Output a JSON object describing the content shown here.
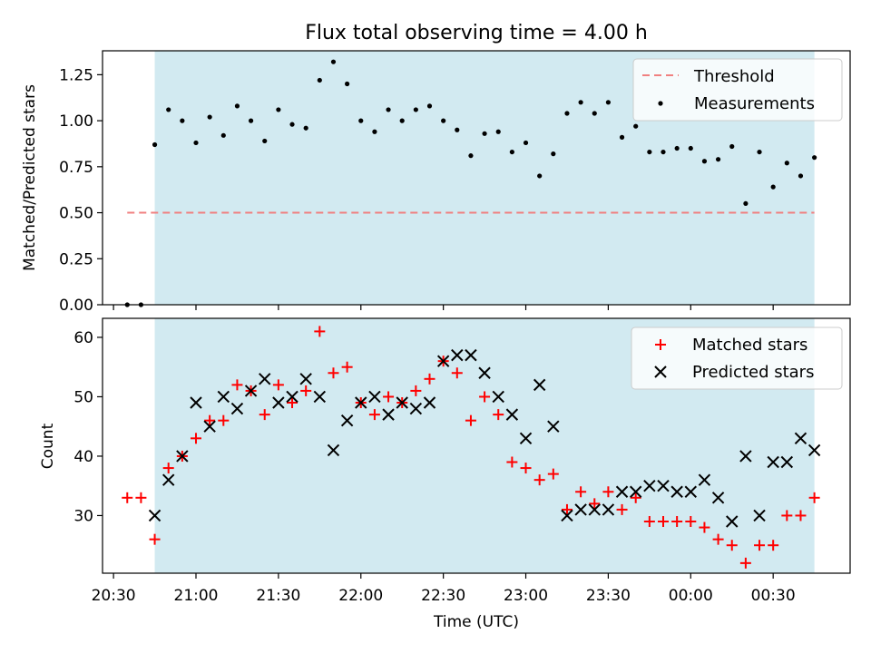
{
  "title": "Flux total observing time = 4.00 h",
  "colors": {
    "threshold": "#f08080",
    "matched": "#ff0000",
    "predicted": "#000000",
    "measurement": "#000000",
    "shade": "#add8e6"
  },
  "chart_data": [
    {
      "type": "scatter",
      "panel": "ratio",
      "xlabel": "",
      "ylabel": "Matched/Predicted stars",
      "xlim": [
        "20:26",
        "00:58"
      ],
      "ylim": [
        0,
        1.38
      ],
      "yticks": [
        "0.00",
        "0.25",
        "0.50",
        "0.75",
        "1.00",
        "1.25"
      ],
      "shaded_span": [
        "20:45",
        "00:45"
      ],
      "grid": false,
      "legend_position": "top-right",
      "legend": [
        "Threshold",
        "Measurements"
      ],
      "threshold": {
        "name": "Threshold",
        "y": 0.5,
        "x": [
          "20:35",
          "00:45"
        ]
      },
      "series": [
        {
          "name": "Measurements",
          "marker": "dot",
          "x": [
            "20:35",
            "20:40",
            "20:45",
            "20:50",
            "20:55",
            "21:00",
            "21:05",
            "21:10",
            "21:15",
            "21:20",
            "21:25",
            "21:30",
            "21:35",
            "21:40",
            "21:45",
            "21:50",
            "21:55",
            "22:00",
            "22:05",
            "22:10",
            "22:15",
            "22:20",
            "22:25",
            "22:30",
            "22:35",
            "22:40",
            "22:45",
            "22:50",
            "22:55",
            "23:00",
            "23:05",
            "23:10",
            "23:15",
            "23:20",
            "23:25",
            "23:30",
            "23:35",
            "23:40",
            "23:45",
            "23:50",
            "23:55",
            "00:00",
            "00:05",
            "00:10",
            "00:15",
            "00:20",
            "00:25",
            "00:30",
            "00:35",
            "00:40",
            "00:45"
          ],
          "y": [
            0.0,
            0.0,
            0.87,
            1.06,
            1.0,
            0.88,
            1.02,
            0.92,
            1.08,
            1.0,
            0.89,
            1.06,
            0.98,
            0.96,
            1.22,
            1.32,
            1.2,
            1.0,
            0.94,
            1.06,
            1.0,
            1.06,
            1.08,
            1.0,
            0.95,
            0.81,
            0.93,
            0.94,
            0.83,
            0.88,
            0.7,
            0.82,
            1.04,
            1.1,
            1.04,
            1.1,
            0.91,
            0.97,
            0.83,
            0.83,
            0.85,
            0.85,
            0.78,
            0.79,
            0.86,
            0.55,
            0.83,
            0.64,
            0.77,
            0.7,
            0.8
          ]
        }
      ]
    },
    {
      "type": "scatter",
      "panel": "counts",
      "xlabel": "Time (UTC)",
      "ylabel": "Count",
      "xlim": [
        "20:26",
        "00:58"
      ],
      "ylim": [
        20.3,
        63.2
      ],
      "yticks": [
        "30",
        "40",
        "50",
        "60"
      ],
      "xticks": [
        "20:30",
        "21:00",
        "21:30",
        "22:00",
        "22:30",
        "23:00",
        "23:30",
        "00:00",
        "00:30"
      ],
      "shaded_span": [
        "20:45",
        "00:45"
      ],
      "grid": false,
      "legend_position": "top-right",
      "x": [
        "20:35",
        "20:40",
        "20:45",
        "20:50",
        "20:55",
        "21:00",
        "21:05",
        "21:10",
        "21:15",
        "21:20",
        "21:25",
        "21:30",
        "21:35",
        "21:40",
        "21:45",
        "21:50",
        "21:55",
        "22:00",
        "22:05",
        "22:10",
        "22:15",
        "22:20",
        "22:25",
        "22:30",
        "22:35",
        "22:40",
        "22:45",
        "22:50",
        "22:55",
        "23:00",
        "23:05",
        "23:10",
        "23:15",
        "23:20",
        "23:25",
        "23:30",
        "23:35",
        "23:40",
        "23:45",
        "23:50",
        "23:55",
        "00:00",
        "00:05",
        "00:10",
        "00:15",
        "00:20",
        "00:25",
        "00:30",
        "00:35",
        "00:40",
        "00:45"
      ],
      "series": [
        {
          "name": "Matched stars",
          "marker": "plus",
          "values": [
            33,
            33,
            26,
            38,
            40,
            43,
            46,
            46,
            52,
            51,
            47,
            52,
            49,
            51,
            61,
            54,
            55,
            49,
            47,
            50,
            49,
            51,
            53,
            56,
            54,
            46,
            50,
            47,
            39,
            38,
            36,
            37,
            31,
            34,
            32,
            34,
            31,
            33,
            29,
            29,
            29,
            29,
            28,
            26,
            25,
            22,
            25,
            25,
            30,
            30,
            33
          ]
        },
        {
          "name": "Predicted stars",
          "marker": "x",
          "values": [
            null,
            null,
            30,
            36,
            40,
            49,
            45,
            50,
            48,
            51,
            53,
            49,
            50,
            53,
            50,
            41,
            46,
            49,
            50,
            47,
            49,
            48,
            49,
            56,
            57,
            57,
            54,
            50,
            47,
            43,
            52,
            45,
            30,
            31,
            31,
            31,
            34,
            34,
            35,
            35,
            34,
            34,
            36,
            33,
            29,
            40,
            30,
            39,
            39,
            43,
            41
          ]
        }
      ]
    }
  ]
}
